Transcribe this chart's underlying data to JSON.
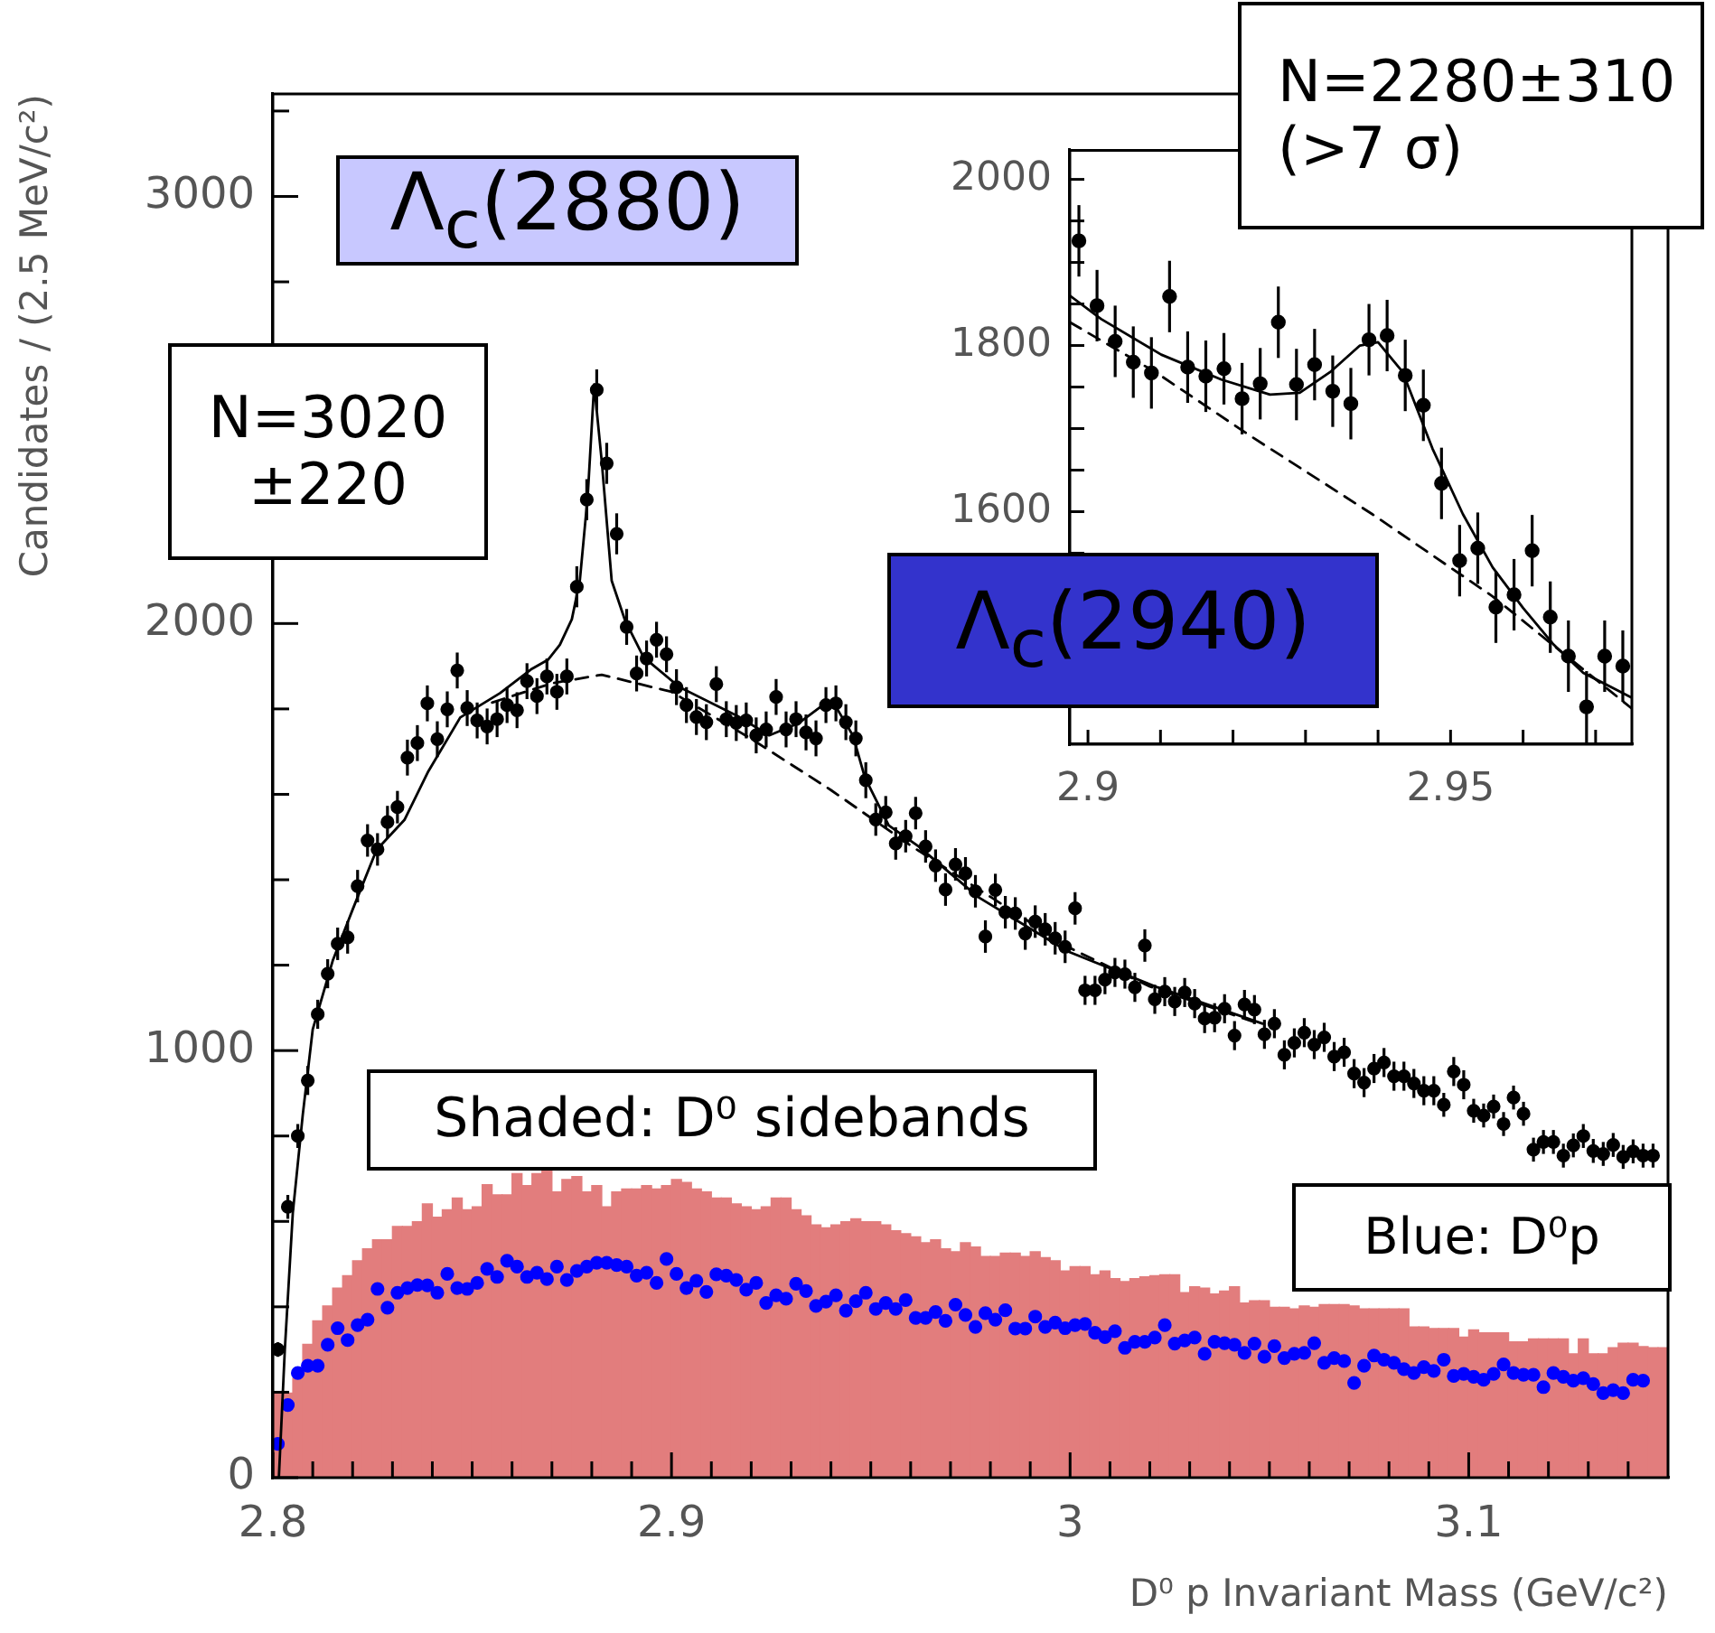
{
  "chart_data": [
    {
      "type": "scatter",
      "xlabel": "D⁰ p Invariant Mass (GeV/c²)",
      "ylabel": "Candidates / (2.5 MeV/c²)",
      "annotations": [
        "Λ$_{c}$(2880)",
        "N=3020\n±220",
        "Shaded: D⁰ sidebands",
        "Blue: D⁰p"
      ],
      "x": [
        2.80125,
        2.80375,
        2.80625,
        2.80875,
        2.81125,
        2.81375,
        2.81625,
        2.81875,
        2.82125,
        2.82375,
        2.82625,
        2.82875,
        2.83125,
        2.83375,
        2.83625,
        2.83875,
        2.84125,
        2.84375,
        2.84625,
        2.84875,
        2.85125,
        2.85375,
        2.85625,
        2.85875,
        2.86125,
        2.86375,
        2.86625,
        2.86875,
        2.87125,
        2.87375,
        2.87625,
        2.87875,
        2.88125,
        2.88375,
        2.88625,
        2.88875,
        2.89125,
        2.89375,
        2.89625,
        2.89875,
        2.90125,
        2.90375,
        2.90625,
        2.90875,
        2.91125,
        2.91375,
        2.91625,
        2.91875,
        2.92125,
        2.92375,
        2.92625,
        2.92875,
        2.93125,
        2.93375,
        2.93625,
        2.93875,
        2.94125,
        2.94375,
        2.94625,
        2.94875,
        2.95125,
        2.95375,
        2.95625,
        2.95875,
        2.96125,
        2.96375,
        2.96625,
        2.96875,
        2.97125,
        2.97375,
        2.97625,
        2.97875,
        2.98125,
        2.98375,
        2.98625,
        2.98875,
        2.99125,
        2.99375,
        2.99625,
        2.99875,
        3.00125,
        3.00375,
        3.00625,
        3.00875,
        3.01125,
        3.01375,
        3.01625,
        3.01875,
        3.02125,
        3.02375,
        3.02625,
        3.02875,
        3.03125,
        3.03375,
        3.03625,
        3.03875,
        3.04125,
        3.04375,
        3.04625,
        3.04875,
        3.05125,
        3.05375,
        3.05625,
        3.05875,
        3.06125,
        3.06375,
        3.06625,
        3.06875,
        3.07125,
        3.07375,
        3.07625,
        3.07875,
        3.08125,
        3.08375,
        3.08625,
        3.08875,
        3.09125,
        3.09375,
        3.09625,
        3.09875,
        3.10125,
        3.10375,
        3.10625,
        3.10875,
        3.11125,
        3.11375,
        3.11625,
        3.11875,
        3.12125,
        3.12375,
        3.12625,
        3.12875,
        3.13125,
        3.13375,
        3.13625,
        3.13875,
        3.14125,
        3.14375,
        3.14625
      ],
      "xlim": [
        2.8,
        3.15
      ],
      "xticks": [
        2.8,
        {
          "value": 2.81,
          "label": null
        },
        {
          "value": 2.82,
          "label": null
        },
        {
          "value": 2.83,
          "label": null
        },
        {
          "value": 2.84,
          "label": null
        },
        {
          "value": 2.85,
          "label": null
        },
        {
          "value": 2.86,
          "label": null
        },
        {
          "value": 2.87,
          "label": null
        },
        {
          "value": 2.88,
          "label": null
        },
        {
          "value": 2.89,
          "label": null
        },
        2.9,
        {
          "value": 2.91,
          "label": null
        },
        {
          "value": 2.92,
          "label": null
        },
        {
          "value": 2.93,
          "label": null
        },
        {
          "value": 2.94,
          "label": null
        },
        {
          "value": 2.95,
          "label": null
        },
        {
          "value": 2.96,
          "label": null
        },
        {
          "value": 2.97,
          "label": null
        },
        {
          "value": 2.98,
          "label": null
        },
        {
          "value": 2.99,
          "label": null
        },
        3,
        {
          "value": 3.01,
          "label": null
        },
        {
          "value": 3.02,
          "label": null
        },
        {
          "value": 3.03,
          "label": null
        },
        {
          "value": 3.04,
          "label": null
        },
        {
          "value": 3.05,
          "label": null
        },
        {
          "value": 3.06,
          "label": null
        },
        {
          "value": 3.07,
          "label": null
        },
        {
          "value": 3.08,
          "label": null
        },
        {
          "value": 3.09,
          "label": null
        },
        3.1,
        {
          "value": 3.11,
          "label": null
        },
        {
          "value": 3.12,
          "label": null
        },
        {
          "value": 3.13,
          "label": null
        },
        {
          "value": 3.14,
          "label": null
        }
      ],
      "ylim": [
        0,
        3240
      ],
      "yticks": [
        0,
        {
          "value": 200,
          "label": null
        },
        {
          "value": 400,
          "label": null
        },
        {
          "value": 600,
          "label": null
        },
        {
          "value": 800,
          "label": null
        },
        1000,
        {
          "value": 1200,
          "label": null
        },
        {
          "value": 1400,
          "label": null
        },
        {
          "value": 1600,
          "label": null
        },
        {
          "value": 1800,
          "label": null
        },
        2000,
        {
          "value": 2200,
          "label": null
        },
        {
          "value": 2400,
          "label": null
        },
        {
          "value": 2600,
          "label": null
        },
        {
          "value": 2800,
          "label": null
        },
        3000,
        {
          "value": 3200,
          "label": null
        }
      ],
      "legend": false,
      "marker": "circle",
      "series": [
        {
          "type": "histogram",
          "color": "#e27d7d",
          "bins": [
            2.8,
            2.8025,
            2.805,
            2.8075,
            2.81,
            2.8125,
            2.815,
            2.8175,
            2.82,
            2.8225,
            2.825,
            2.8275,
            2.83,
            2.8325,
            2.835,
            2.8375,
            2.84,
            2.8425,
            2.845,
            2.8475,
            2.85,
            2.8525,
            2.855,
            2.8575,
            2.86,
            2.8625,
            2.865,
            2.8675,
            2.87,
            2.8725,
            2.875,
            2.8775,
            2.88,
            2.8825,
            2.885,
            2.8875,
            2.89,
            2.8925,
            2.895,
            2.8975,
            2.9,
            2.9025,
            2.905,
            2.9075,
            2.91,
            2.9125,
            2.915,
            2.9175,
            2.92,
            2.9225,
            2.925,
            2.9275,
            2.93,
            2.9325,
            2.935,
            2.9375,
            2.94,
            2.9425,
            2.945,
            2.9475,
            2.95,
            2.9525,
            2.955,
            2.9575,
            2.96,
            2.9625,
            2.965,
            2.9675,
            2.97,
            2.9725,
            2.975,
            2.9775,
            2.98,
            2.9825,
            2.985,
            2.9875,
            2.99,
            2.9925,
            2.995,
            2.9975,
            3.0,
            3.0025,
            3.005,
            3.0075,
            3.01,
            3.0125,
            3.015,
            3.0175,
            3.02,
            3.0225,
            3.025,
            3.0275,
            3.03,
            3.0325,
            3.035,
            3.0375,
            3.04,
            3.0425,
            3.045,
            3.0475,
            3.05,
            3.0525,
            3.055,
            3.0575,
            3.06,
            3.0625,
            3.065,
            3.0675,
            3.07,
            3.0725,
            3.075,
            3.0775,
            3.08,
            3.0825,
            3.085,
            3.0875,
            3.09,
            3.0925,
            3.095,
            3.0975,
            3.1,
            3.1025,
            3.105,
            3.1075,
            3.11,
            3.1125,
            3.115,
            3.1175,
            3.12,
            3.1225,
            3.125,
            3.1275,
            3.13,
            3.1325,
            3.135,
            3.1375,
            3.14,
            3.1425,
            3.145,
            3.1475,
            3.15
          ],
          "values": [
            198,
            198,
            233,
            312,
            367,
            402,
            444,
            473,
            508,
            536,
            557,
            557,
            588,
            588,
            599,
            641,
            610,
            627,
            655,
            627,
            634,
            686,
            662,
            662,
            712,
            684,
            712,
            719,
            669,
            698,
            705,
            669,
            684,
            634,
            669,
            676,
            676,
            684,
            676,
            684,
            698,
            691,
            676,
            669,
            655,
            655,
            641,
            634,
            627,
            634,
            655,
            655,
            627,
            613,
            592,
            585,
            592,
            599,
            606,
            599,
            599,
            592,
            578,
            571,
            564,
            550,
            557,
            536,
            529,
            550,
            540,
            518,
            518,
            526,
            526,
            518,
            529,
            515,
            508,
            484,
            494,
            494,
            475,
            484,
            466,
            459,
            466,
            470,
            473,
            475,
            475,
            433,
            447,
            444,
            430,
            437,
            447,
            409,
            414,
            414,
            399,
            399,
            395,
            402,
            399,
            405,
            405,
            405,
            402,
            395,
            395,
            395,
            395,
            395,
            353,
            353,
            349,
            349,
            349,
            329,
            346,
            339,
            339,
            339,
            318,
            318,
            325,
            325,
            325,
            325,
            290,
            325,
            290,
            290,
            304,
            315,
            315,
            307,
            304,
            304
          ]
        },
        {
          "color": "#000000",
          "values": [
            300,
            634,
            800,
            930,
            1085,
            1180,
            1250,
            1265,
            1385,
            1492,
            1471,
            1535,
            1570,
            1686,
            1720,
            1813,
            1729,
            1799,
            1890,
            1802,
            1773,
            1759,
            1776,
            1809,
            1797,
            1865,
            1830,
            1876,
            1840,
            1876,
            2086,
            2290,
            2547,
            2375,
            2210,
            1992,
            1883,
            1918,
            1962,
            1928,
            1851,
            1809,
            1781,
            1769,
            1858,
            1776,
            1767,
            1773,
            1738,
            1752,
            1828,
            1752,
            1776,
            1745,
            1731,
            1809,
            1813,
            1769,
            1731,
            1633,
            1541,
            1558,
            1485,
            1502,
            1556,
            1478,
            1433,
            1377,
            1436,
            1415,
            1373,
            1267,
            1376,
            1324,
            1321,
            1274,
            1302,
            1284,
            1263,
            1243,
            1333,
            1141,
            1141,
            1166,
            1183,
            1179,
            1148,
            1246,
            1120,
            1138,
            1115,
            1136,
            1110,
            1075,
            1077,
            1098,
            1035,
            1108,
            1096,
            1038,
            1063,
            990,
            1018,
            1042,
            1014,
            1031,
            986,
            996,
            946,
            925,
            958,
            972,
            940,
            940,
            923,
            906,
            906,
            873,
            951,
            920,
            859,
            848,
            869,
            828,
            890,
            852,
            768,
            786,
            786,
            754,
            778,
            800,
            765,
            758,
            779,
            751,
            764,
            754,
            754
          ],
          "errors": [
            17,
            28,
            28,
            34,
            34,
            34,
            38,
            38,
            38,
            38,
            38,
            38,
            38,
            42,
            42,
            42,
            42,
            42,
            42,
            42,
            42,
            42,
            42,
            42,
            42,
            42,
            42,
            42,
            42,
            42,
            48,
            48,
            48,
            48,
            48,
            42,
            42,
            42,
            42,
            42,
            42,
            42,
            42,
            42,
            42,
            42,
            42,
            42,
            42,
            42,
            42,
            42,
            42,
            42,
            42,
            42,
            42,
            42,
            42,
            42,
            38,
            38,
            38,
            38,
            38,
            38,
            38,
            38,
            38,
            38,
            38,
            38,
            38,
            38,
            38,
            38,
            38,
            38,
            38,
            38,
            38,
            34,
            34,
            34,
            34,
            34,
            34,
            38,
            34,
            34,
            34,
            34,
            34,
            34,
            34,
            34,
            34,
            34,
            34,
            34,
            34,
            34,
            34,
            34,
            34,
            34,
            34,
            34,
            34,
            34,
            34,
            34,
            34,
            34,
            34,
            34,
            34,
            28,
            34,
            34,
            28,
            28,
            28,
            28,
            28,
            28,
            28,
            28,
            28,
            28,
            28,
            28,
            28,
            28,
            28,
            28,
            28,
            28,
            28
          ]
        },
        {
          "color": "#0000ff",
          "values": [
            79,
            170,
            245,
            262,
            262,
            311,
            350,
            322,
            357,
            370,
            442,
            398,
            433,
            444,
            451,
            450,
            433,
            477,
            444,
            442,
            456,
            489,
            470,
            508,
            494,
            470,
            480,
            465,
            494,
            463,
            484,
            494,
            503,
            503,
            498,
            494,
            473,
            480,
            456,
            512,
            477,
            444,
            461,
            435,
            476,
            473,
            463,
            440,
            456,
            409,
            427,
            419,
            454,
            437,
            402,
            412,
            427,
            391,
            413,
            433,
            395,
            409,
            395,
            416,
            374,
            374,
            388,
            367,
            405,
            381,
            353,
            385,
            370,
            392,
            349,
            349,
            377,
            353,
            363,
            350,
            357,
            360,
            339,
            329,
            343,
            304,
            318,
            318,
            328,
            357,
            314,
            321,
            328,
            290,
            318,
            315,
            311,
            292,
            314,
            283,
            308,
            280,
            290,
            292,
            315,
            269,
            280,
            273,
            222,
            262,
            286,
            276,
            269,
            254,
            245,
            259,
            250,
            276,
            238,
            243,
            236,
            229,
            243,
            265,
            245,
            241,
            241,
            212,
            245,
            236,
            227,
            233,
            219,
            198,
            205,
            198,
            229,
            227,
            null
          ]
        },
        {
          "type": "line",
          "color": "#000000",
          "marker": "none",
          "line_style": "solid",
          "x": [
            2.8015,
            2.803,
            2.805,
            2.8075,
            2.81,
            2.815,
            2.82,
            2.826,
            2.833,
            2.839,
            2.847,
            2.857,
            2.865,
            2.869,
            2.872,
            2.875,
            2.877,
            2.879,
            2.8806,
            2.8825,
            2.885,
            2.8884,
            2.893,
            2.902,
            2.917,
            2.9245,
            2.932,
            2.938,
            2.941,
            2.9455,
            2.9485,
            2.9545,
            2.962,
            2.977,
            2.9995,
            3.022,
            3.0483
          ],
          "values": [
            0,
            300,
            620,
            850,
            1050,
            1210,
            1330,
            1470,
            1540,
            1654,
            1780,
            1837,
            1894,
            1915,
            1950,
            2010,
            2100,
            2300,
            2560,
            2380,
            2100,
            2006,
            1921,
            1851,
            1781,
            1738,
            1767,
            1809,
            1809,
            1738,
            1640,
            1527,
            1478,
            1359,
            1232,
            1148,
            1063
          ]
        },
        {
          "type": "line",
          "color": "#000000",
          "marker": "none",
          "line_style": "dashed",
          "x": [
            2.855,
            2.87,
            2.8825,
            2.9,
            2.92,
            2.94,
            2.96,
            2.98,
            3.0,
            3.02,
            3.0483
          ],
          "values": [
            1815,
            1860,
            1880,
            1840,
            1730,
            1610,
            1480,
            1360,
            1240,
            1150,
            1060
          ]
        }
      ]
    },
    {
      "type": "scatter",
      "annotations": [
        "N=2280±310\n(>7 σ)",
        "Λ$_{c}$(2940)"
      ],
      "x": [
        2.89875,
        2.90125,
        2.90375,
        2.90625,
        2.90875,
        2.91125,
        2.91375,
        2.91625,
        2.91875,
        2.92125,
        2.92375,
        2.92625,
        2.92875,
        2.93125,
        2.93375,
        2.93625,
        2.93875,
        2.94125,
        2.94375,
        2.94625,
        2.94875,
        2.95125,
        2.95375,
        2.95625,
        2.95875,
        2.96125,
        2.96375,
        2.96625,
        2.96875,
        2.97125,
        2.97375
      ],
      "xlim": [
        2.8975,
        2.975
      ],
      "xticks": [
        2.9,
        {
          "value": 2.91,
          "label": null
        },
        {
          "value": 2.92,
          "label": null
        },
        {
          "value": 2.93,
          "label": null
        },
        {
          "value": 2.94,
          "label": null
        },
        2.95,
        {
          "value": 2.96,
          "label": null
        },
        {
          "value": 2.97,
          "label": null
        }
      ],
      "ylim": [
        1320,
        2035
      ],
      "yticks": [
        {
          "value": 1450,
          "label": null
        },
        {
          "value": 1500,
          "label": null
        },
        {
          "value": 1550,
          "label": null
        },
        1600,
        {
          "value": 1650,
          "label": null
        },
        {
          "value": 1700,
          "label": null
        },
        {
          "value": 1750,
          "label": null
        },
        1800,
        {
          "value": 1850,
          "label": null
        },
        {
          "value": 1900,
          "label": null
        },
        {
          "value": 1950,
          "label": null
        },
        2000
      ],
      "legend": false,
      "marker": "circle",
      "series": [
        {
          "color": "#000000",
          "values": [
            1926,
            1848,
            1805,
            1780,
            1767,
            1859,
            1774,
            1763,
            1772,
            1736,
            1754,
            1828,
            1753,
            1777,
            1745,
            1730,
            1807,
            1812,
            1764,
            1728,
            1634,
            1541,
            1556,
            1485,
            1500,
            1553,
            1473,
            1426,
            1365,
            1426,
            1414
          ],
          "errors": [
            43,
            43,
            43,
            43,
            43,
            43,
            43,
            43,
            43,
            43,
            43,
            43,
            43,
            43,
            43,
            43,
            43,
            43,
            43,
            43,
            43,
            43,
            43,
            43,
            43,
            43,
            43,
            43,
            43,
            43,
            43
          ]
        },
        {
          "type": "line",
          "color": "#000000",
          "marker": "none",
          "line_style": "solid",
          "x": [
            2.8975,
            2.9018,
            2.9101,
            2.9184,
            2.9251,
            2.9292,
            2.9334,
            2.9375,
            2.94,
            2.9434,
            2.9475,
            2.9517,
            2.9558,
            2.96,
            2.9641,
            2.9683,
            2.975
          ],
          "values": [
            1860,
            1832,
            1789,
            1759,
            1741,
            1743,
            1768,
            1800,
            1804,
            1768,
            1676,
            1597,
            1533,
            1484,
            1441,
            1406,
            1376
          ]
        },
        {
          "type": "line",
          "color": "#000000",
          "marker": "none",
          "line_style": "dashed",
          "x": [
            2.8975,
            2.9093,
            2.9226,
            2.9392,
            2.9558,
            2.975
          ],
          "values": [
            1828,
            1768,
            1690,
            1597,
            1498,
            1363
          ]
        }
      ]
    }
  ]
}
